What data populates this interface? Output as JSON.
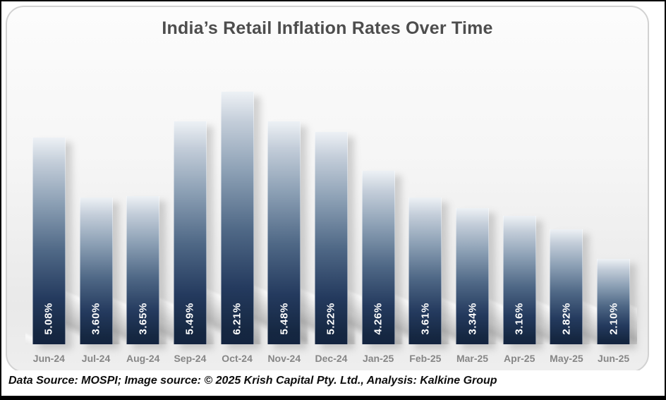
{
  "title": "India’s Retail Inflation Rates Over Time",
  "footer": "Data Source: MOSPI; Image source: © 2025 Krish Capital Pty. Ltd., Analysis: Kalkine Group",
  "chart_data": {
    "type": "bar",
    "title": "India’s Retail Inflation Rates Over Time",
    "categories": [
      "Jun-24",
      "Jul-24",
      "Aug-24",
      "Sep-24",
      "Oct-24",
      "Nov-24",
      "Dec-24",
      "Jan-25",
      "Feb-25",
      "Mar-25",
      "Apr-25",
      "May-25",
      "Jun-25"
    ],
    "values": [
      5.08,
      3.6,
      3.65,
      5.49,
      6.21,
      5.48,
      5.22,
      4.26,
      3.61,
      3.34,
      3.16,
      2.82,
      2.1
    ],
    "value_labels": [
      "5.08%",
      "3.60%",
      "3.65%",
      "5.49%",
      "6.21%",
      "5.48%",
      "5.22%",
      "4.26%",
      "3.61%",
      "3.34%",
      "3.16%",
      "2.82%",
      "2.10%"
    ],
    "xlabel": "",
    "ylabel": "",
    "ylim": [
      0,
      6.6
    ],
    "grid": false,
    "legend": false,
    "unit": "%",
    "bar_color_top": "#edf1f5",
    "bar_color_bottom": "#142440",
    "value_label_color": "#ffffff",
    "axis_label_color": "#868686",
    "title_color": "#4d4d4d"
  }
}
